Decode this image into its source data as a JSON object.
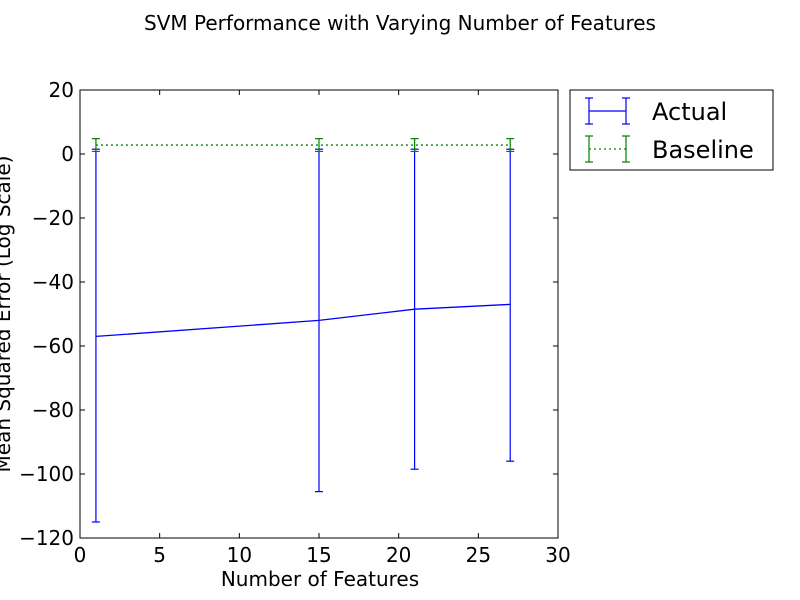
{
  "chart_data": {
    "type": "line",
    "title": "SVM Performance with Varying Number of Features",
    "xlabel": "Number of Features",
    "ylabel": "Mean Squared Error (Log Scale)",
    "xlim": [
      0,
      30
    ],
    "ylim": [
      -120,
      20
    ],
    "xticks": [
      0,
      5,
      10,
      15,
      20,
      25,
      30
    ],
    "yticks": [
      20,
      0,
      -20,
      -40,
      -60,
      -80,
      -100,
      -120
    ],
    "grid": false,
    "legend_position": "outside-top-right",
    "series": [
      {
        "name": "Actual",
        "color": "#0000ff",
        "line_style": "solid",
        "x": [
          1,
          15,
          21,
          27
        ],
        "y": [
          -57,
          -52,
          -48.5,
          -47
        ],
        "yerr_lower": [
          -115,
          -105.5,
          -98.5,
          -96
        ],
        "yerr_upper": [
          1.5,
          1.5,
          1.5,
          1.5
        ]
      },
      {
        "name": "Baseline",
        "color": "#008000",
        "line_style": "dotted",
        "x": [
          1,
          15,
          21,
          27
        ],
        "y": [
          2.8,
          2.8,
          2.8,
          2.8
        ],
        "yerr_lower": [
          0.8,
          0.8,
          0.8,
          0.8
        ],
        "yerr_upper": [
          4.8,
          4.8,
          4.8,
          4.8
        ]
      }
    ]
  }
}
